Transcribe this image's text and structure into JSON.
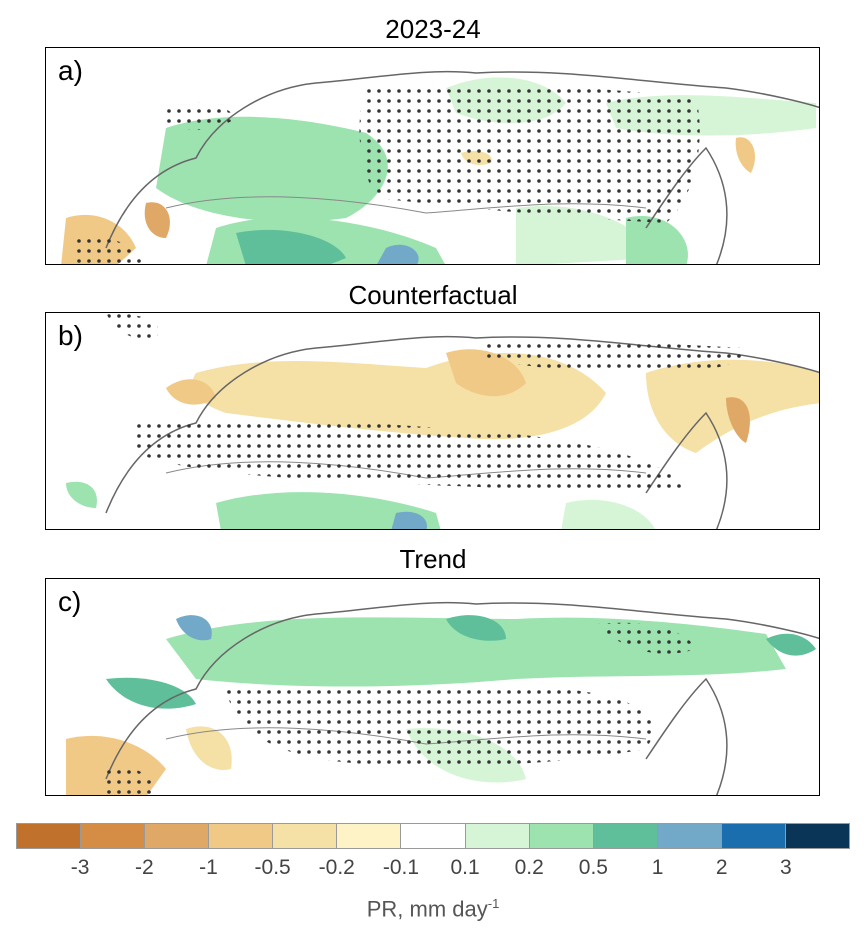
{
  "panels": [
    {
      "title": "2023-24",
      "label": "a)"
    },
    {
      "title": "Counterfactual",
      "label": "b)"
    },
    {
      "title": "Trend",
      "label": "c)"
    }
  ],
  "colorbar": {
    "colors": [
      "#c0712c",
      "#d58c45",
      "#e0a866",
      "#f1c987",
      "#f5e0a6",
      "#fdf3c6",
      "#ffffff",
      "#d6f5d6",
      "#9de3b0",
      "#5fbf9a",
      "#72a9c9",
      "#1a6eae",
      "#0a3556"
    ],
    "ticks": [
      "-3",
      "-2",
      "-1",
      "-0.5",
      "-0.2",
      "-0.1",
      "0.1",
      "0.2",
      "0.5",
      "1",
      "2",
      "3"
    ],
    "title_main": "PR, mm day",
    "title_sup": "-1"
  }
}
